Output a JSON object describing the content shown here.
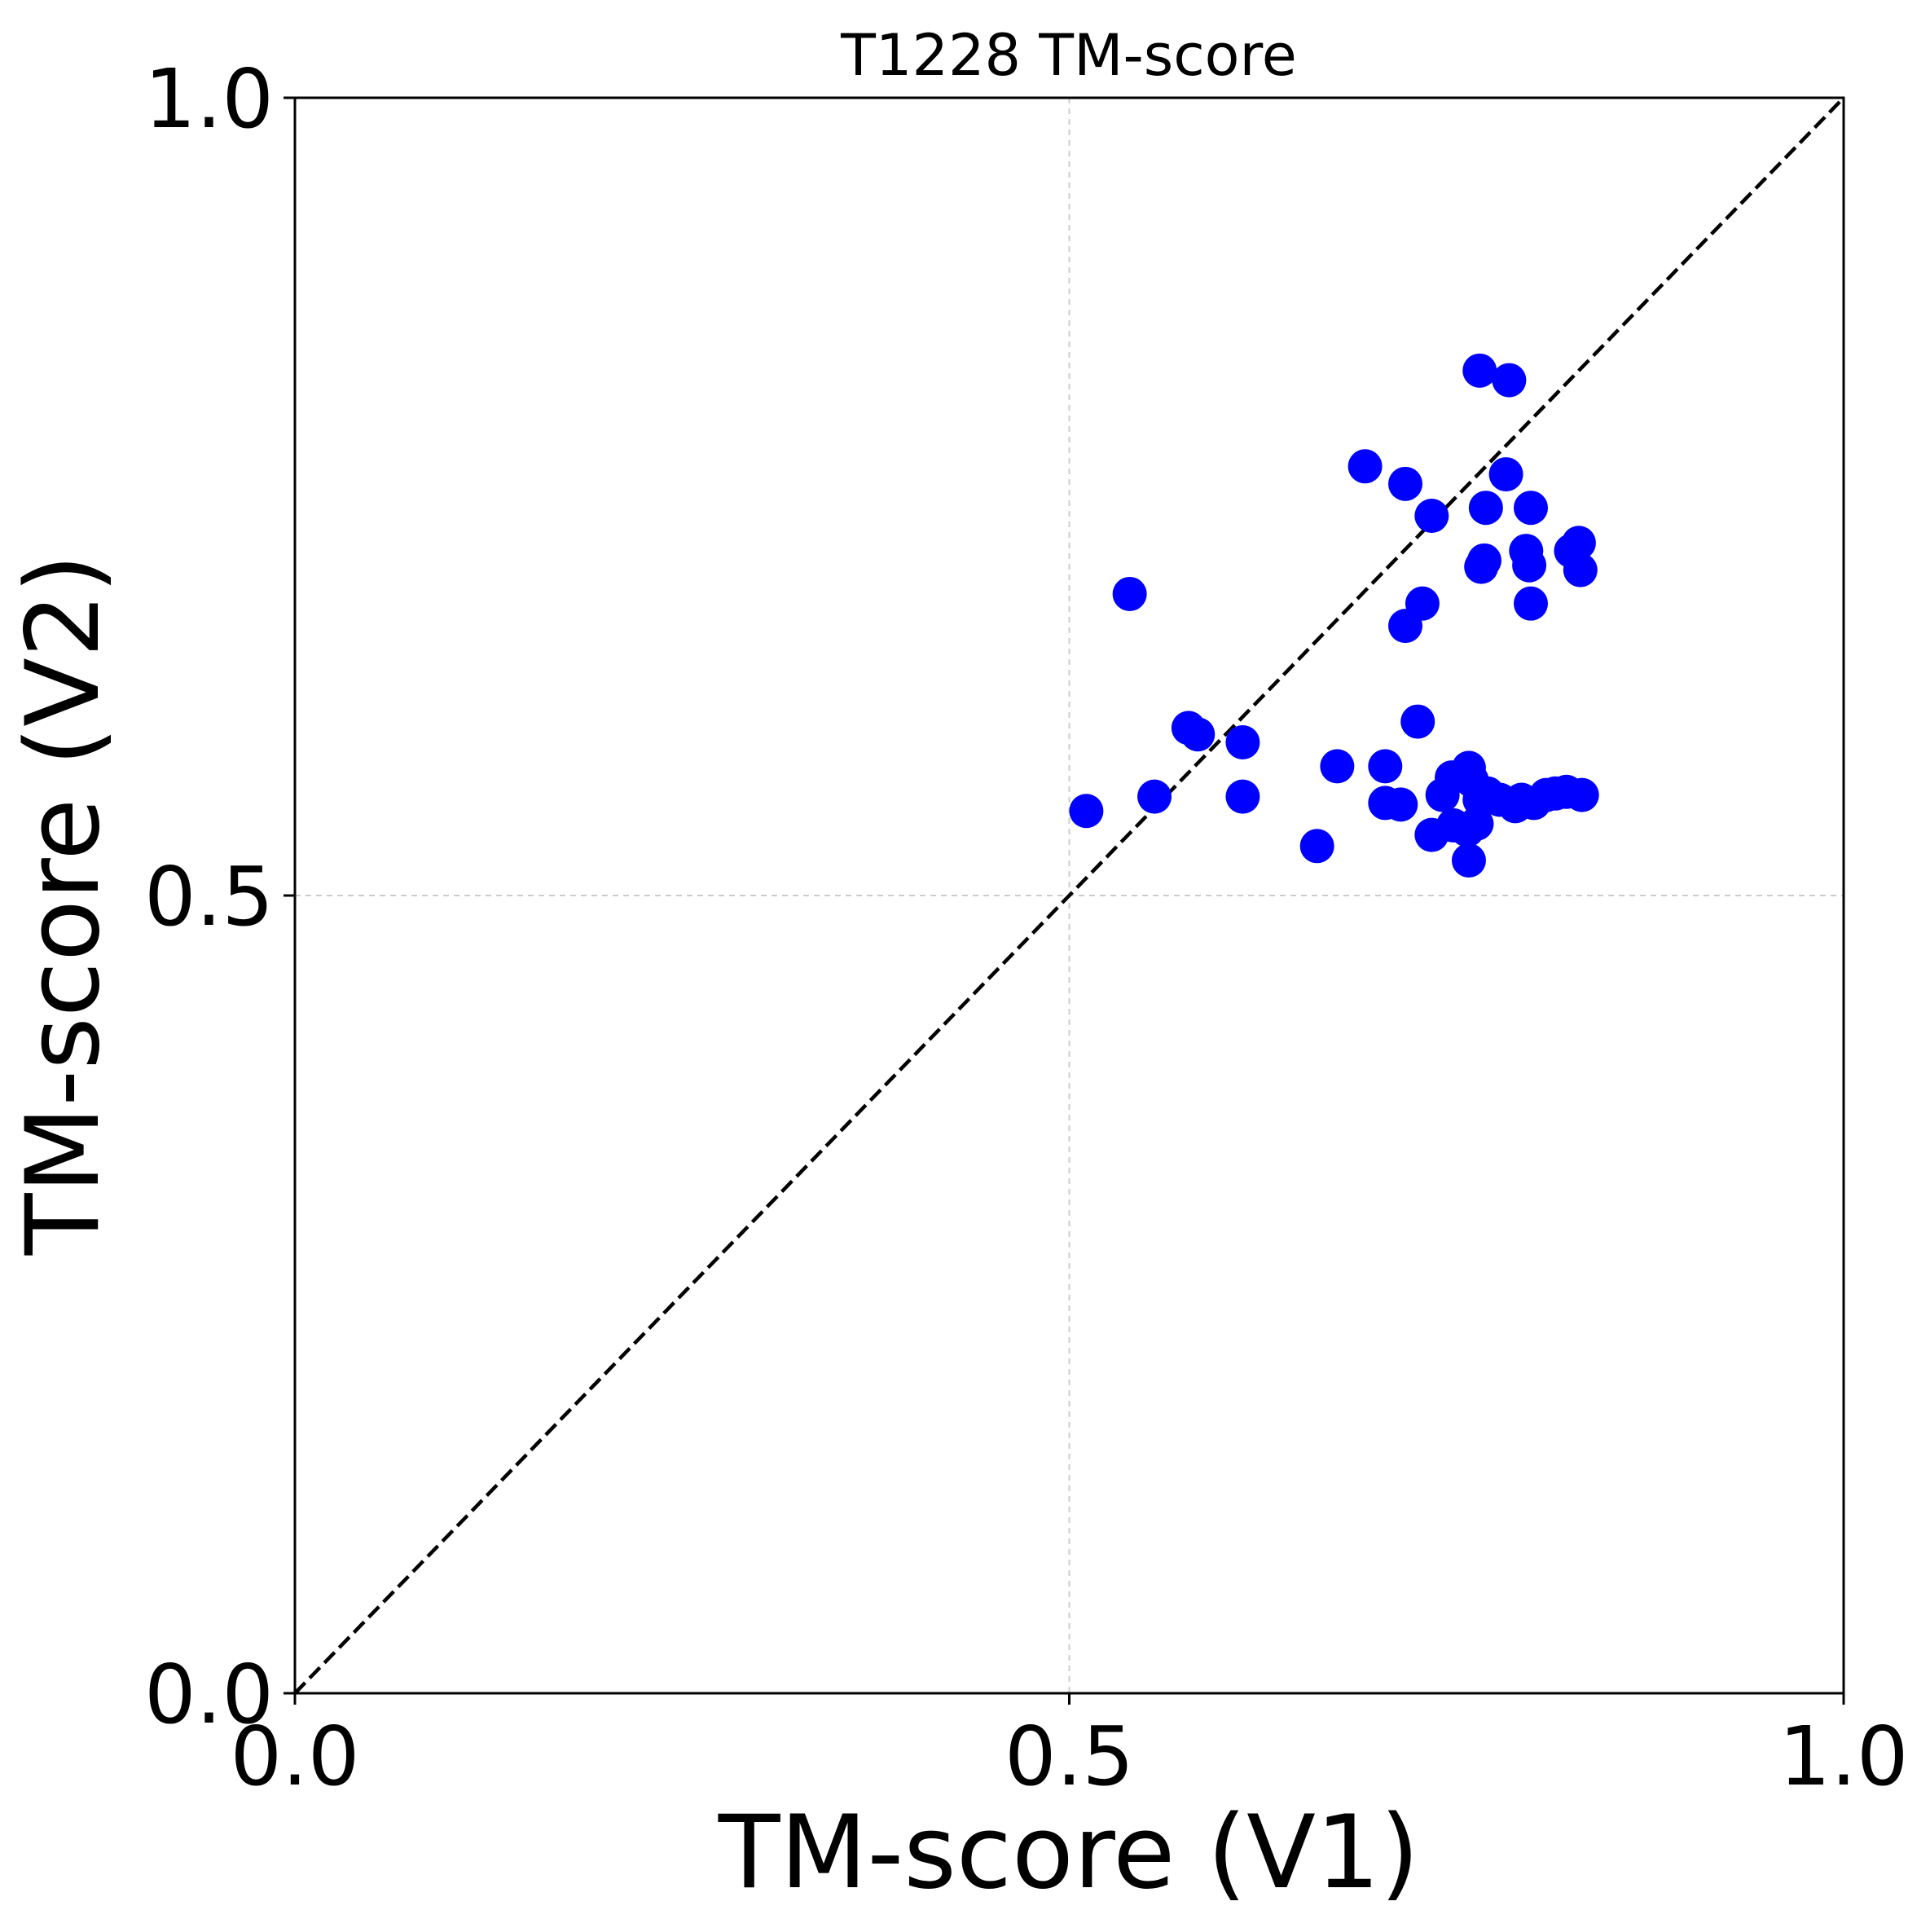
{
  "chart_data": {
    "type": "scatter",
    "title": "T1228 TM-score",
    "xlabel": "TM-score (V1)",
    "ylabel": "TM-score (V2)",
    "xlim": [
      0.0,
      1.0
    ],
    "ylim": [
      0.0,
      1.0
    ],
    "xticks": [
      0.0,
      0.5,
      1.0
    ],
    "yticks": [
      0.0,
      0.5,
      1.0
    ],
    "xtick_labels": [
      "0.0",
      "0.5",
      "1.0"
    ],
    "ytick_labels": [
      "0.0",
      "0.5",
      "1.0"
    ],
    "grid": true,
    "grid_lines_at": [
      0.5
    ],
    "diagonal_reference": "y = x, dashed",
    "marker_color": "#0000ff",
    "series": [
      {
        "points": [
          [
            0.765,
            0.829
          ],
          [
            0.784,
            0.823
          ],
          [
            0.691,
            0.769
          ],
          [
            0.717,
            0.758
          ],
          [
            0.782,
            0.764
          ],
          [
            0.798,
            0.743
          ],
          [
            0.769,
            0.743
          ],
          [
            0.734,
            0.738
          ],
          [
            0.829,
            0.721
          ],
          [
            0.824,
            0.716
          ],
          [
            0.795,
            0.716
          ],
          [
            0.768,
            0.71
          ],
          [
            0.766,
            0.706
          ],
          [
            0.797,
            0.707
          ],
          [
            0.83,
            0.704
          ],
          [
            0.539,
            0.689
          ],
          [
            0.728,
            0.683
          ],
          [
            0.717,
            0.669
          ],
          [
            0.798,
            0.683
          ],
          [
            0.725,
            0.609
          ],
          [
            0.577,
            0.605
          ],
          [
            0.583,
            0.601
          ],
          [
            0.612,
            0.596
          ],
          [
            0.673,
            0.581
          ],
          [
            0.704,
            0.581
          ],
          [
            0.511,
            0.553
          ],
          [
            0.555,
            0.562
          ],
          [
            0.612,
            0.562
          ],
          [
            0.704,
            0.558
          ],
          [
            0.714,
            0.557
          ],
          [
            0.741,
            0.563
          ],
          [
            0.747,
            0.574
          ],
          [
            0.76,
            0.572
          ],
          [
            0.758,
            0.58
          ],
          [
            0.765,
            0.56
          ],
          [
            0.77,
            0.564
          ],
          [
            0.778,
            0.56
          ],
          [
            0.788,
            0.556
          ],
          [
            0.792,
            0.56
          ],
          [
            0.8,
            0.558
          ],
          [
            0.808,
            0.563
          ],
          [
            0.814,
            0.564
          ],
          [
            0.821,
            0.565
          ],
          [
            0.831,
            0.563
          ],
          [
            0.734,
            0.538
          ],
          [
            0.748,
            0.544
          ],
          [
            0.757,
            0.541
          ],
          [
            0.763,
            0.545
          ],
          [
            0.758,
            0.522
          ],
          [
            0.66,
            0.531
          ]
        ]
      }
    ]
  }
}
